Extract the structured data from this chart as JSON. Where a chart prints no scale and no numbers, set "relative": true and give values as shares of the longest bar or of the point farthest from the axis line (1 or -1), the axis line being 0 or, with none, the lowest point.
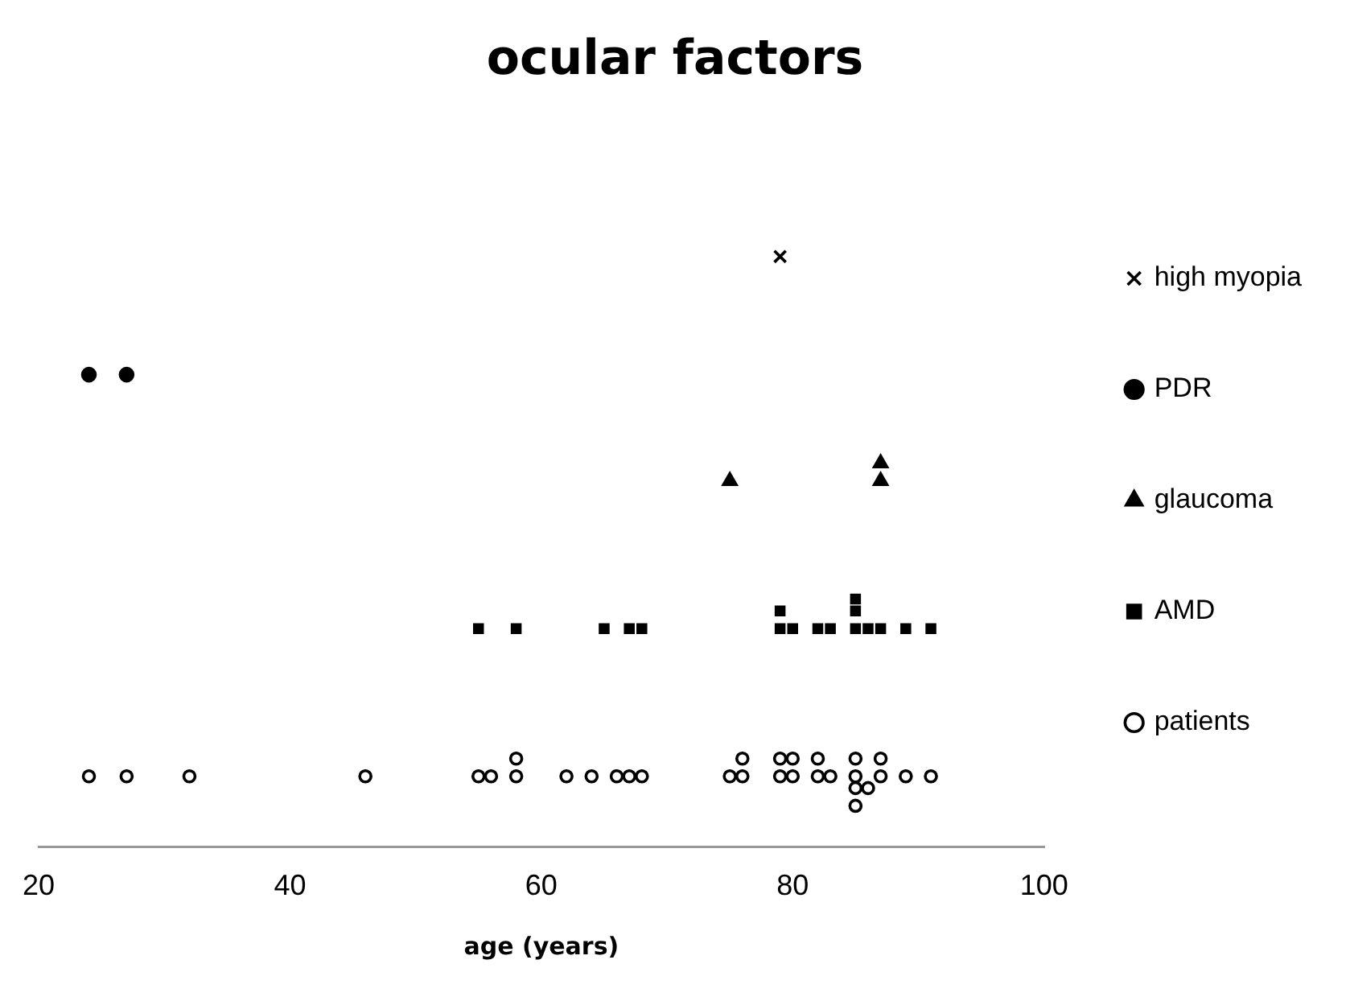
{
  "chart_data": {
    "type": "scatter",
    "title": "ocular factors",
    "xlabel": "age (years)",
    "relative": true,
    "xlim": [
      20,
      100
    ],
    "xticks": [
      20,
      40,
      60,
      80,
      100
    ],
    "grid": false,
    "legend": "right",
    "series": [
      {
        "name": "high myopia",
        "color": "#000000",
        "marker": "cross",
        "x": [
          79
        ],
        "values": [
          1
        ]
      },
      {
        "name": "PDR",
        "color": "#000000",
        "marker": "circle",
        "x": [
          24,
          27
        ],
        "values": [
          0.8,
          0.8
        ]
      },
      {
        "name": "glaucoma",
        "color": "#000000",
        "marker": "triangle",
        "x": [
          75,
          87,
          87
        ],
        "values": [
          0.62,
          0.62,
          0.65
        ]
      },
      {
        "name": "AMD",
        "color": "#000000",
        "marker": "square",
        "x": [
          55,
          58,
          65,
          67,
          68,
          79,
          79,
          80,
          82,
          83,
          85,
          85,
          85,
          86,
          87,
          89,
          91
        ],
        "values": [
          0.37,
          0.37,
          0.37,
          0.37,
          0.37,
          0.37,
          0.4,
          0.37,
          0.37,
          0.37,
          0.37,
          0.4,
          0.42,
          0.37,
          0.37,
          0.37,
          0.37
        ]
      },
      {
        "name": "patients",
        "color": "#000000",
        "marker": "circle-open",
        "x": [
          24,
          27,
          32,
          46,
          55,
          56,
          58,
          58,
          62,
          64,
          66,
          67,
          68,
          75,
          76,
          76,
          79,
          79,
          80,
          80,
          82,
          82,
          83,
          85,
          85,
          85,
          85,
          86,
          87,
          87,
          89,
          91
        ],
        "values": [
          0.12,
          0.12,
          0.12,
          0.12,
          0.12,
          0.12,
          0.12,
          0.15,
          0.12,
          0.12,
          0.12,
          0.12,
          0.12,
          0.12,
          0.12,
          0.15,
          0.12,
          0.15,
          0.12,
          0.15,
          0.12,
          0.15,
          0.12,
          0.15,
          0.12,
          0.1,
          0.07,
          0.1,
          0.12,
          0.15,
          0.12,
          0.12
        ]
      }
    ]
  }
}
